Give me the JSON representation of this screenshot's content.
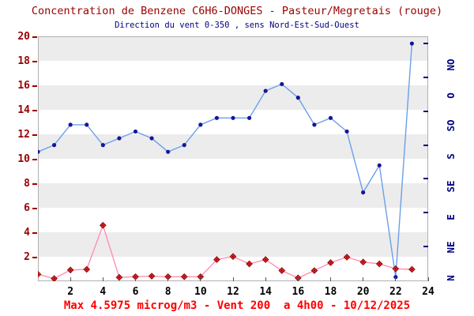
{
  "chart_data": {
    "type": "line",
    "title": "Concentration de Benzene C6H6-DONGES - Pasteur/Megretais (rouge)",
    "subtitle": "Direction du vent 0-350 , sens Nord-Est-Sud-Ouest",
    "caption": "Max 4.5975 microg/m3 - Vent 200  a 4h00 - 10/12/2025",
    "hours": [
      0,
      1,
      2,
      3,
      4,
      5,
      6,
      7,
      8,
      9,
      10,
      11,
      12,
      13,
      14,
      15,
      16,
      17,
      18,
      19,
      20,
      21,
      22,
      23
    ],
    "x_axis": {
      "range": [
        0,
        24
      ],
      "ticks": [
        2,
        4,
        6,
        8,
        10,
        12,
        14,
        16,
        18,
        20,
        22,
        24
      ],
      "tick_label_color": "#000000"
    },
    "y_axis_left": {
      "name": "concentration",
      "unit": "microg/m3",
      "range": [
        0,
        20
      ],
      "ticks": [
        2,
        4,
        6,
        8,
        10,
        12,
        14,
        16,
        18,
        20
      ],
      "color": "#990000"
    },
    "y_axis_right": {
      "name": "direction du vent",
      "unit": "deg",
      "range": [
        0,
        350
      ],
      "tick_step_deg": 50,
      "color": "#000080",
      "direction_labels": [
        {
          "label": "N",
          "deg": 0
        },
        {
          "label": "NE",
          "deg": 45
        },
        {
          "label": "E",
          "deg": 90
        },
        {
          "label": "SE",
          "deg": 135
        },
        {
          "label": "S",
          "deg": 180
        },
        {
          "label": "SO",
          "deg": 225
        },
        {
          "label": "O",
          "deg": 270
        },
        {
          "label": "NO",
          "deg": 315
        }
      ]
    },
    "series": [
      {
        "name": "benzene-concentration",
        "axis": "left",
        "marker": "diamond",
        "line_color": "#ff8fb4",
        "marker_fill": "#e03030",
        "marker_edge": "#8b0000",
        "values": [
          0.6,
          0.25,
          0.95,
          1.0,
          4.5975,
          0.35,
          0.4,
          0.45,
          0.4,
          0.4,
          0.4,
          1.8,
          2.05,
          1.45,
          1.8,
          0.9,
          0.3,
          0.9,
          1.55,
          2.0,
          1.6,
          1.45,
          1.05,
          1.0
        ]
      },
      {
        "name": "wind-direction",
        "axis": "right",
        "marker": "circle",
        "line_color": "#69a0ea",
        "marker_fill": "#151599",
        "values_deg": [
          190,
          200,
          230,
          230,
          200,
          210,
          220,
          210,
          190,
          200,
          230,
          240,
          240,
          240,
          280,
          290,
          270,
          230,
          240,
          220,
          130,
          170,
          5,
          350
        ]
      }
    ],
    "annotation": {
      "max": "4.5975",
      "unit": "microg/m3",
      "vent": "200",
      "time": "4h00",
      "date": "10/12/2025"
    },
    "style": {
      "band_color": "#ececec",
      "plot_border": "#b0b0b0",
      "background": "#ffffff",
      "title_color": "#990000",
      "subtitle_color": "#000080",
      "caption_color": "#ff0000"
    }
  }
}
